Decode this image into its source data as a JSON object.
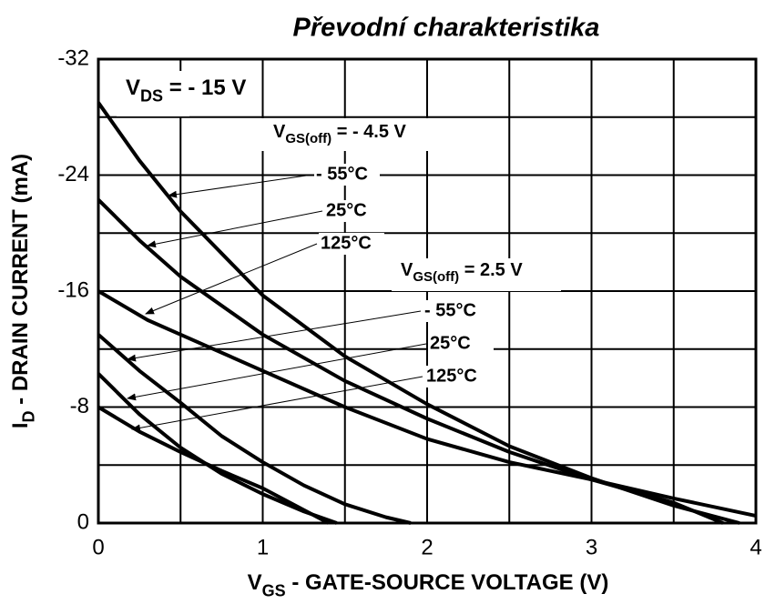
{
  "chart_data": {
    "type": "line",
    "title": "Převodní charakteristika",
    "x_label": {
      "main": "V",
      "sub": "GS",
      "rest": " - GATE-SOURCE VOLTAGE (V)"
    },
    "y_label": {
      "main": "I",
      "sub": "D",
      "rest": " - DRAIN CURRENT (mA)"
    },
    "xlim": [
      0,
      4
    ],
    "ylim": [
      0,
      -32
    ],
    "xticks": [
      0,
      1,
      2,
      3,
      4
    ],
    "yticks": [
      0,
      -8,
      -16,
      -24,
      -32
    ],
    "xgrid": [
      0.5,
      1.5,
      2.5,
      3.5
    ],
    "ygrid": [
      -4,
      -12,
      -20,
      -28
    ],
    "grid": true,
    "annotations": [
      {
        "main": "V",
        "sub": "DS",
        "rest": " = - 15 V"
      },
      {
        "main": "V",
        "sub": "GS(off)",
        "rest": " = - 4.5 V"
      },
      {
        "main": "V",
        "sub": "GS(off)",
        "rest": " = 2.5 V"
      }
    ],
    "series": [
      {
        "name": "- 55°C",
        "color": "#000000",
        "x": [
          0,
          0.25,
          0.5,
          1,
          1.5,
          2,
          2.5,
          3,
          3.5,
          3.9
        ],
        "values": [
          -29,
          -25,
          -21.5,
          -15.7,
          -11.5,
          -8.2,
          -5.3,
          -3.1,
          -1.2,
          0
        ]
      },
      {
        "name": "25°C",
        "color": "#000000",
        "x": [
          0,
          0.25,
          0.5,
          1,
          1.5,
          2,
          2.5,
          3,
          3.5,
          3.8
        ],
        "values": [
          -22.3,
          -19.5,
          -17,
          -13,
          -9.8,
          -7.2,
          -4.9,
          -3,
          -1.4,
          0
        ]
      },
      {
        "name": "125°C",
        "color": "#000000",
        "x": [
          0,
          0.3,
          0.5,
          1,
          1.5,
          2,
          2.5,
          3,
          3.5,
          4
        ],
        "values": [
          -16,
          -14,
          -13,
          -10.5,
          -8,
          -5.8,
          -4.2,
          -3,
          -1.7,
          -0.5
        ]
      },
      {
        "name": "- 55°C",
        "color": "#000000",
        "x": [
          0,
          0.25,
          0.5,
          0.75,
          1,
          1.25,
          1.5,
          1.75,
          1.9
        ],
        "values": [
          -13,
          -10.5,
          -8.3,
          -6,
          -4.2,
          -2.6,
          -1.3,
          -0.4,
          0
        ]
      },
      {
        "name": "25°C",
        "color": "#000000",
        "x": [
          0,
          0.25,
          0.5,
          0.75,
          1,
          1.25,
          1.45
        ],
        "values": [
          -10.3,
          -7.5,
          -5.2,
          -3.4,
          -2,
          -0.8,
          0
        ]
      },
      {
        "name": "125°C",
        "color": "#000000",
        "x": [
          0,
          0.25,
          0.5,
          0.75,
          1,
          1.2,
          1.4
        ],
        "values": [
          -8,
          -6.3,
          -4.9,
          -3.6,
          -2.4,
          -1.2,
          0
        ]
      }
    ]
  }
}
